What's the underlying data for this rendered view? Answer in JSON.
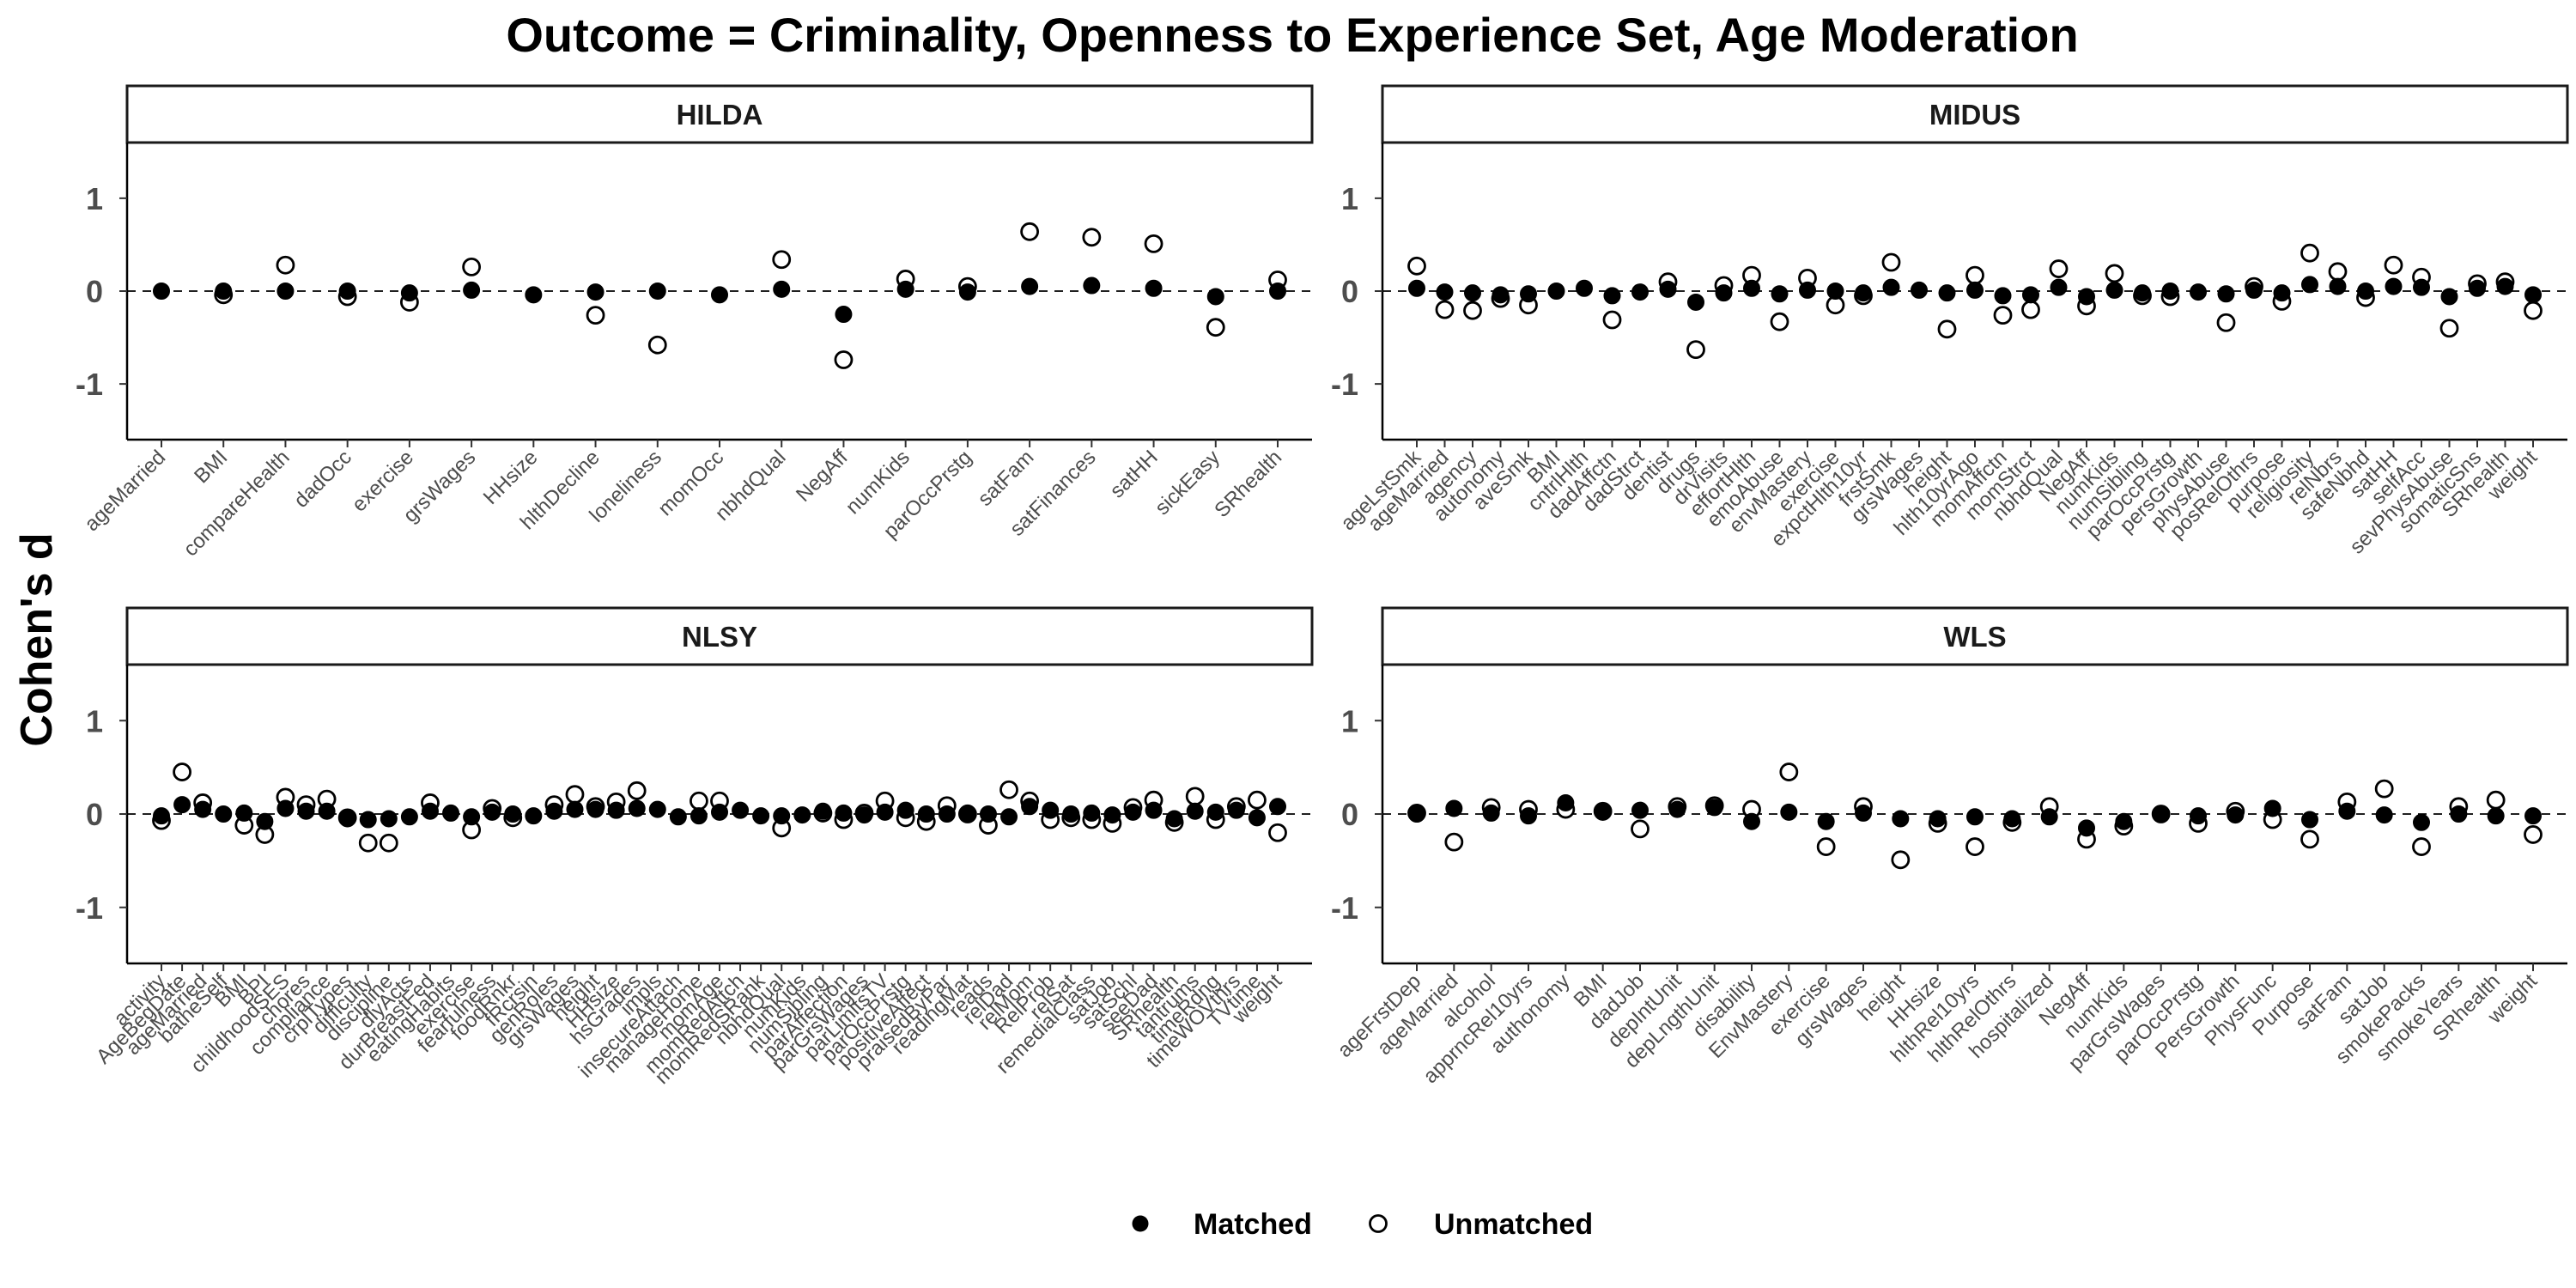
{
  "title": "Outcome = Criminality, Openness to Experience Set, Age Moderation",
  "ylabel": "Cohen's d",
  "legend": {
    "matched": "Matched",
    "unmatched": "Unmatched"
  },
  "chart_data": [
    {
      "type": "scatter",
      "panel": "HILDA",
      "ylim": [
        -1.6,
        1.6
      ],
      "yticks": [
        -1,
        0,
        1
      ],
      "reference_line": 0,
      "categories": [
        "ageMarried",
        "BMI",
        "compareHealth",
        "dadOcc",
        "exercise",
        "grsWages",
        "HHsize",
        "hlthDecline",
        "loneliness",
        "momOcc",
        "nbhdQual",
        "NegAff",
        "numKids",
        "parOccPrstg",
        "satFam",
        "satFinances",
        "satHH",
        "sickEasy",
        "SRhealth"
      ],
      "series": [
        {
          "name": "Matched",
          "values": [
            0.0,
            0.0,
            0.0,
            0.0,
            -0.02,
            0.01,
            -0.04,
            -0.01,
            0.0,
            -0.04,
            0.02,
            -0.25,
            0.02,
            -0.01,
            0.05,
            0.06,
            0.03,
            -0.06,
            0.0
          ]
        },
        {
          "name": "Unmatched",
          "values": [
            null,
            -0.04,
            0.28,
            -0.06,
            -0.12,
            0.26,
            null,
            -0.26,
            -0.58,
            null,
            0.34,
            -0.74,
            0.13,
            0.05,
            0.64,
            0.58,
            0.51,
            -0.39,
            0.12
          ]
        }
      ]
    },
    {
      "type": "scatter",
      "panel": "MIDUS",
      "ylim": [
        -1.6,
        1.6
      ],
      "yticks": [
        -1,
        0,
        1
      ],
      "reference_line": 0,
      "categories": [
        "ageLstSmk",
        "ageMarried",
        "agency",
        "autonomy",
        "aveSmk",
        "BMI",
        "cntrlHlth",
        "dadAffctn",
        "dadStrct",
        "dentist",
        "drugs",
        "drVisits",
        "effortHlth",
        "emoAbuse",
        "envMastery",
        "exercise",
        "expctHlth10yr",
        "frstSmk",
        "grsWages",
        "height",
        "hlth10yrAgo",
        "momAffctn",
        "momStrct",
        "nbhdQual",
        "NegAff",
        "numKids",
        "numSibling",
        "parOccPrstg",
        "persGrowth",
        "physAbuse",
        "posRelOthrs",
        "purpose",
        "religiosity",
        "relNbrs",
        "safeNbhd",
        "satHH",
        "selfAcc",
        "sevPhysAbuse",
        "somaticSns",
        "SRhealth",
        "weight"
      ],
      "series": [
        {
          "name": "Matched",
          "values": [
            0.03,
            -0.01,
            -0.02,
            -0.04,
            -0.03,
            0.0,
            0.03,
            -0.05,
            -0.01,
            0.02,
            -0.12,
            -0.02,
            0.03,
            -0.03,
            0.01,
            0.0,
            -0.02,
            0.04,
            0.01,
            -0.02,
            0.01,
            -0.05,
            -0.04,
            0.04,
            -0.06,
            0.01,
            -0.02,
            0.0,
            -0.01,
            -0.03,
            0.01,
            -0.02,
            0.07,
            0.05,
            0.0,
            0.05,
            0.04,
            -0.06,
            0.03,
            0.05,
            -0.04
          ]
        },
        {
          "name": "Unmatched",
          "values": [
            0.27,
            -0.2,
            -0.21,
            -0.08,
            -0.15,
            null,
            null,
            -0.31,
            null,
            0.1,
            -0.63,
            0.06,
            0.17,
            -0.33,
            0.14,
            -0.15,
            -0.05,
            0.31,
            null,
            -0.41,
            0.17,
            -0.26,
            -0.2,
            0.24,
            -0.16,
            0.19,
            -0.05,
            -0.06,
            null,
            -0.34,
            0.05,
            -0.11,
            0.41,
            0.21,
            -0.07,
            0.28,
            0.15,
            -0.4,
            0.08,
            0.1,
            -0.21
          ]
        }
      ]
    },
    {
      "type": "scatter",
      "panel": "NLSY",
      "ylim": [
        -1.6,
        1.6
      ],
      "yticks": [
        -1,
        0,
        1
      ],
      "reference_line": 0,
      "categories": [
        "activity",
        "AgeBegDate",
        "ageMarried",
        "batheSelf",
        "BMI",
        "BPI",
        "childhoodSES",
        "chores",
        "compliance",
        "crplTypes",
        "difficulty",
        "discipline",
        "dlyActs",
        "durBreastFed",
        "eatingHabits",
        "exercise",
        "fearfulness",
        "foodRnkr",
        "fRcrsin",
        "genRoles",
        "grsWages",
        "height",
        "HHsize",
        "hsGrades",
        "impls",
        "insecureAttach",
        "manageHome",
        "momAge",
        "momRedAttch",
        "momRedSRank",
        "nbhdQual",
        "numKids",
        "numSibling",
        "parAffection",
        "parGrsWages",
        "parLimitsTV",
        "parOccPrstg",
        "positiveAffect",
        "praisedByPar",
        "readingMat",
        "reads",
        "relDad",
        "relMom",
        "RelProb",
        "relSat",
        "remedialClass",
        "satJob",
        "satSchl",
        "seeDad",
        "SRhealth",
        "tantrums",
        "timeRdng",
        "timeWOVthrs",
        "TVtime",
        "weight"
      ],
      "series": [
        {
          "name": "Matched",
          "values": [
            -0.02,
            0.1,
            0.05,
            0.0,
            0.01,
            -0.08,
            0.06,
            0.03,
            0.03,
            -0.05,
            -0.06,
            -0.05,
            -0.03,
            0.03,
            0.01,
            -0.03,
            0.02,
            0.0,
            -0.02,
            0.03,
            0.05,
            0.05,
            0.04,
            0.06,
            0.05,
            -0.03,
            -0.02,
            0.02,
            0.04,
            -0.02,
            -0.02,
            -0.01,
            0.03,
            0.01,
            -0.01,
            0.02,
            0.04,
            0.0,
            0.0,
            0.01,
            0.0,
            -0.03,
            0.08,
            0.04,
            0.0,
            0.01,
            -0.01,
            0.02,
            0.04,
            -0.05,
            0.03,
            0.02,
            0.04,
            -0.04,
            0.08
          ]
        },
        {
          "name": "Unmatched",
          "values": [
            -0.07,
            0.45,
            0.12,
            null,
            -0.12,
            -0.22,
            0.18,
            0.1,
            0.16,
            -0.04,
            -0.31,
            -0.31,
            null,
            0.12,
            null,
            -0.17,
            0.06,
            -0.04,
            null,
            0.1,
            0.21,
            0.08,
            0.13,
            0.25,
            null,
            null,
            0.14,
            0.14,
            null,
            null,
            -0.15,
            null,
            0.01,
            -0.06,
            0.01,
            0.14,
            -0.04,
            -0.08,
            0.09,
            0.0,
            -0.12,
            0.26,
            0.14,
            -0.06,
            -0.04,
            -0.06,
            -0.1,
            0.07,
            0.15,
            -0.09,
            0.19,
            -0.06,
            0.08,
            0.15,
            -0.2
          ]
        }
      ]
    },
    {
      "type": "scatter",
      "panel": "WLS",
      "ylim": [
        -1.6,
        1.6
      ],
      "yticks": [
        -1,
        0,
        1
      ],
      "reference_line": 0,
      "categories": [
        "ageFrstDep",
        "ageMarried",
        "alcohol",
        "apprncRel10yrs",
        "authonomy",
        "BMI",
        "dadJob",
        "depIntUnit",
        "depLngthUnit",
        "disability",
        "EnvMastery",
        "exercise",
        "grsWages",
        "height",
        "HHsize",
        "hlthRel10yrs",
        "hlthRelOthrs",
        "hospitalized",
        "NegAff",
        "numKids",
        "parGrsWages",
        "parOccPrstg",
        "PersGrowth",
        "PhysFunc",
        "Purpose",
        "satFam",
        "satJob",
        "smokePacks",
        "smokeYears",
        "SRhealth",
        "weight"
      ],
      "series": [
        {
          "name": "Matched",
          "values": [
            0.0,
            0.06,
            0.01,
            -0.02,
            0.12,
            0.02,
            0.04,
            0.05,
            0.07,
            -0.08,
            0.02,
            -0.08,
            0.01,
            -0.05,
            -0.05,
            -0.03,
            -0.05,
            -0.03,
            -0.15,
            -0.08,
            0.0,
            -0.02,
            -0.01,
            0.06,
            -0.06,
            0.03,
            -0.01,
            -0.09,
            0.0,
            -0.02,
            -0.02
          ]
        },
        {
          "name": "Unmatched",
          "values": [
            0.01,
            -0.3,
            0.07,
            0.05,
            0.05,
            0.03,
            -0.16,
            0.08,
            0.09,
            0.05,
            0.45,
            -0.35,
            0.08,
            -0.49,
            -0.1,
            -0.35,
            -0.09,
            0.08,
            -0.27,
            -0.13,
            0.0,
            -0.1,
            0.03,
            -0.06,
            -0.27,
            0.13,
            0.27,
            -0.35,
            0.08,
            0.15,
            -0.22
          ]
        }
      ]
    }
  ]
}
